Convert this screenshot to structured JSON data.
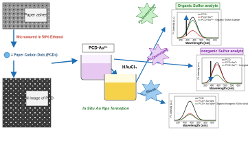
{
  "nodes": {
    "paper_ashes": "Paper ashes",
    "microwave": "Microwaved in 50% Ethanol",
    "pcd_legend": "= Paper Carbon Dots (PCDs)",
    "tem": "TEM Image of PCD",
    "beaker1": "PCD-Au³⁺",
    "reagent": "HAuCl₄",
    "formation": "In Situ Au Nps formation",
    "restoration": "PL Restoration",
    "quenching": "PL Quenching",
    "blank": "Blank"
  },
  "graphs": [
    {
      "title": "Organic Sulfur analyte",
      "legend": [
        "PCD",
        "PCD+Au³⁺",
        "PCD+Au³⁺+ Organic Sulfur Analyte"
      ],
      "x_label": "Wavelength (nm)",
      "y_label": "PL Intensity (a.u.)",
      "xticks": [
        "350",
        "400",
        "450",
        "500",
        "550",
        "600"
      ]
    },
    {
      "title": "Inorganic Sulfur analyte",
      "legend": [
        "PCD",
        "PCD+Au³⁺",
        "PCD+Au³⁺+ Inorganic Sulfur Analyte"
      ],
      "x_label": "Wavelength (nm)",
      "y_label": "PL Intensity (a.u.)",
      "xticks": [
        "350",
        "400",
        "450",
        "500",
        "550",
        "600"
      ]
    },
    {
      "title": null,
      "legend": [
        "PCD",
        "PCD+ Au Nps",
        "PCD+ Au Nps+ Organic/Inorganic Sulfur Analyte"
      ],
      "x_label": "Wavelength (nm)",
      "y_label": "PL Intensity (a.u.)",
      "xticks": [
        "350",
        "400",
        "450",
        "500",
        "550",
        "600"
      ]
    }
  ]
}
